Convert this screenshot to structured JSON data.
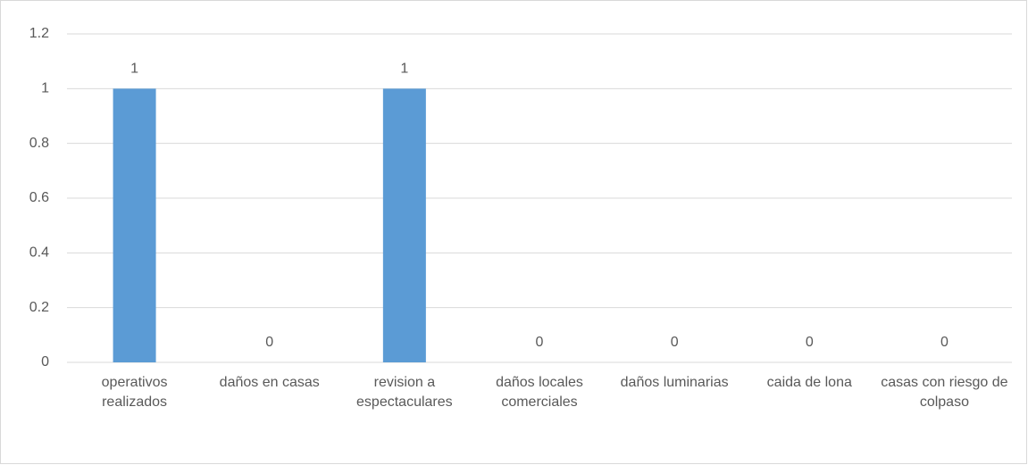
{
  "chart_data": {
    "type": "bar",
    "categories": [
      "operativos realizados",
      "daños en casas",
      "revision a espectaculares",
      "daños locales comerciales",
      "daños luminarias",
      "caida de lona",
      "casas con riesgo de colpaso"
    ],
    "values": [
      1,
      0,
      1,
      0,
      0,
      0,
      0
    ],
    "color": "#5b9bd5",
    "ylim": [
      0,
      1.2
    ],
    "yticks": [
      0,
      0.2,
      0.4,
      0.6,
      0.8,
      1,
      1.2
    ],
    "grid": true
  }
}
